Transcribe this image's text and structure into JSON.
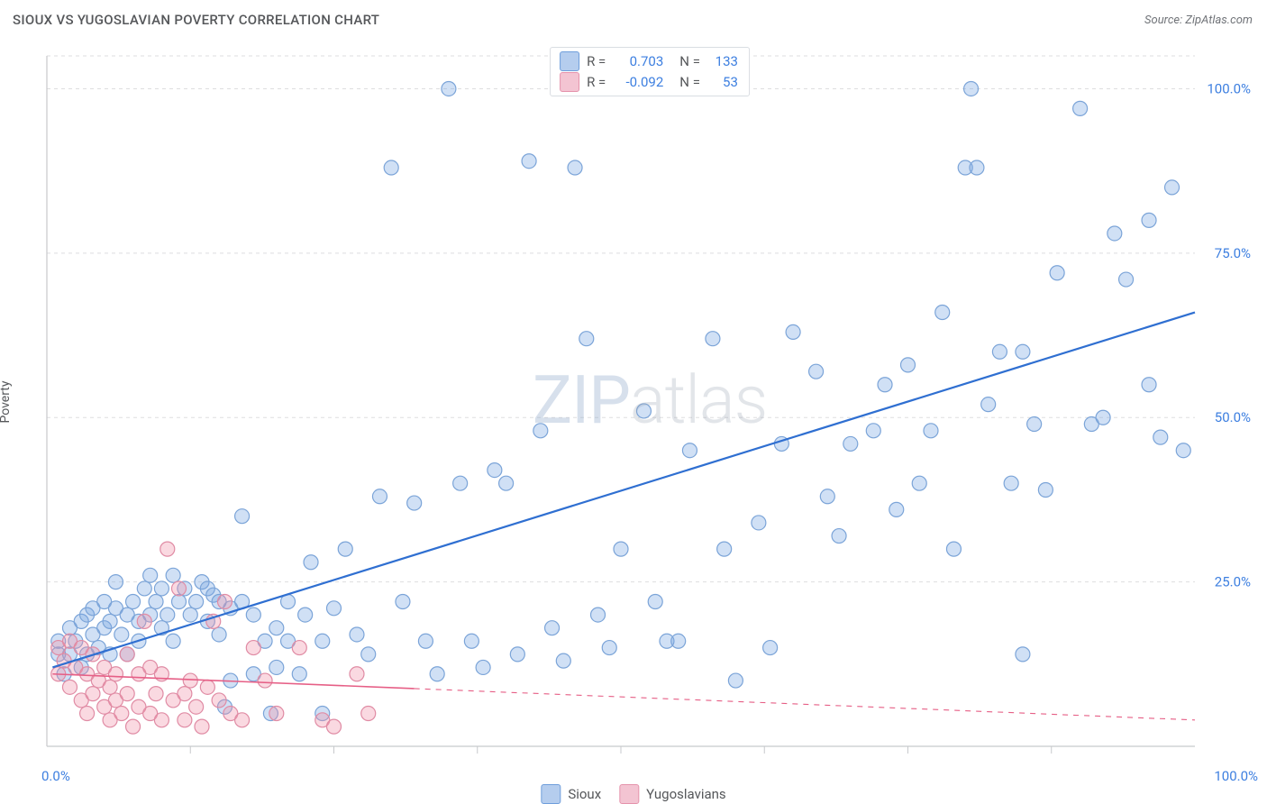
{
  "header": {
    "title": "SIOUX VS YUGOSLAVIAN POVERTY CORRELATION CHART",
    "source": "Source: ZipAtlas.com"
  },
  "y_label": "Poverty",
  "watermark": {
    "part1": "ZIP",
    "part2": "atlas"
  },
  "chart": {
    "type": "scatter",
    "xlim": [
      0,
      100
    ],
    "ylim": [
      0,
      105
    ],
    "x_ticks": [
      0,
      100
    ],
    "x_tick_labels": [
      "0.0%",
      "100.0%"
    ],
    "y_ticks": [
      25,
      50,
      75,
      100
    ],
    "y_tick_labels": [
      "25.0%",
      "50.0%",
      "75.0%",
      "100.0%"
    ],
    "x_minor_ticks": [
      12.5,
      25,
      37.5,
      50,
      62.5,
      75,
      87.5
    ],
    "background_color": "#ffffff",
    "grid_color": "#dededf",
    "axis_color": "#c7c9cc",
    "tick_label_color": "#3d7fe0",
    "marker_radius": 8,
    "marker_stroke_width": 1.2,
    "series": [
      {
        "name": "Sioux",
        "fill": "rgba(120,165,225,0.35)",
        "stroke": "#7ba4d8",
        "swatch_fill": "#b5cdee",
        "swatch_border": "#6f9edb",
        "points": [
          [
            1,
            16
          ],
          [
            1,
            14
          ],
          [
            1.5,
            11
          ],
          [
            2,
            18
          ],
          [
            2,
            14
          ],
          [
            2.5,
            16
          ],
          [
            3,
            19
          ],
          [
            3,
            12
          ],
          [
            3.5,
            20
          ],
          [
            3.5,
            14
          ],
          [
            4,
            21
          ],
          [
            4,
            17
          ],
          [
            4.5,
            15
          ],
          [
            5,
            22
          ],
          [
            5,
            18
          ],
          [
            5.5,
            19
          ],
          [
            5.5,
            14
          ],
          [
            6,
            21
          ],
          [
            6,
            25
          ],
          [
            6.5,
            17
          ],
          [
            7,
            20
          ],
          [
            7,
            14
          ],
          [
            7.5,
            22
          ],
          [
            8,
            19
          ],
          [
            8,
            16
          ],
          [
            8.5,
            24
          ],
          [
            9,
            20
          ],
          [
            9,
            26
          ],
          [
            9.5,
            22
          ],
          [
            10,
            18
          ],
          [
            10,
            24
          ],
          [
            10.5,
            20
          ],
          [
            11,
            26
          ],
          [
            11,
            16
          ],
          [
            11.5,
            22
          ],
          [
            12,
            24
          ],
          [
            12.5,
            20
          ],
          [
            13,
            22
          ],
          [
            13.5,
            25
          ],
          [
            14,
            19
          ],
          [
            14,
            24
          ],
          [
            14.5,
            23
          ],
          [
            15,
            22
          ],
          [
            15,
            17
          ],
          [
            15.5,
            6
          ],
          [
            16,
            21
          ],
          [
            16,
            10
          ],
          [
            17,
            22
          ],
          [
            17,
            35
          ],
          [
            18,
            20
          ],
          [
            18,
            11
          ],
          [
            19,
            16
          ],
          [
            19.5,
            5
          ],
          [
            20,
            18
          ],
          [
            20,
            12
          ],
          [
            21,
            22
          ],
          [
            21,
            16
          ],
          [
            22,
            11
          ],
          [
            22.5,
            20
          ],
          [
            23,
            28
          ],
          [
            24,
            16
          ],
          [
            24,
            5
          ],
          [
            25,
            21
          ],
          [
            26,
            30
          ],
          [
            27,
            17
          ],
          [
            28,
            14
          ],
          [
            29,
            38
          ],
          [
            30,
            88
          ],
          [
            31,
            22
          ],
          [
            32,
            37
          ],
          [
            33,
            16
          ],
          [
            34,
            11
          ],
          [
            35,
            100
          ],
          [
            36,
            40
          ],
          [
            37,
            16
          ],
          [
            38,
            12
          ],
          [
            39,
            42
          ],
          [
            40,
            40
          ],
          [
            41,
            14
          ],
          [
            42,
            89
          ],
          [
            43,
            48
          ],
          [
            44,
            18
          ],
          [
            45,
            13
          ],
          [
            46,
            88
          ],
          [
            47,
            62
          ],
          [
            48,
            20
          ],
          [
            49,
            15
          ],
          [
            50,
            30
          ],
          [
            52,
            51
          ],
          [
            53,
            22
          ],
          [
            54,
            16
          ],
          [
            55,
            16
          ],
          [
            56,
            45
          ],
          [
            58,
            62
          ],
          [
            59,
            30
          ],
          [
            60,
            10
          ],
          [
            62,
            34
          ],
          [
            63,
            15
          ],
          [
            64,
            46
          ],
          [
            65,
            63
          ],
          [
            67,
            57
          ],
          [
            68,
            38
          ],
          [
            69,
            32
          ],
          [
            70,
            46
          ],
          [
            72,
            48
          ],
          [
            73,
            55
          ],
          [
            74,
            36
          ],
          [
            75,
            58
          ],
          [
            76,
            40
          ],
          [
            77,
            48
          ],
          [
            78,
            66
          ],
          [
            79,
            30
          ],
          [
            80,
            88
          ],
          [
            81,
            88
          ],
          [
            80.5,
            100
          ],
          [
            82,
            52
          ],
          [
            83,
            60
          ],
          [
            84,
            40
          ],
          [
            85,
            60
          ],
          [
            85,
            14
          ],
          [
            86,
            49
          ],
          [
            87,
            39
          ],
          [
            88,
            72
          ],
          [
            90,
            97
          ],
          [
            91,
            49
          ],
          [
            92,
            50
          ],
          [
            93,
            78
          ],
          [
            94,
            71
          ],
          [
            96,
            55
          ],
          [
            97,
            47
          ],
          [
            98,
            85
          ],
          [
            99,
            45
          ],
          [
            96,
            80
          ]
        ],
        "trend": {
          "x1": 0.5,
          "y1": 12,
          "x2": 100,
          "y2": 66,
          "solid_until_x": 100,
          "color": "#2f6fd1",
          "width": 2.2
        }
      },
      {
        "name": "Yugoslavians",
        "fill": "rgba(240,145,170,0.35)",
        "stroke": "#e08ba4",
        "swatch_fill": "#f3c4d2",
        "swatch_border": "#e593ac",
        "points": [
          [
            1,
            15
          ],
          [
            1,
            11
          ],
          [
            1.5,
            13
          ],
          [
            2,
            16
          ],
          [
            2,
            9
          ],
          [
            2.5,
            12
          ],
          [
            3,
            15
          ],
          [
            3,
            7
          ],
          [
            3.5,
            11
          ],
          [
            3.5,
            5
          ],
          [
            4,
            14
          ],
          [
            4,
            8
          ],
          [
            4.5,
            10
          ],
          [
            5,
            12
          ],
          [
            5,
            6
          ],
          [
            5.5,
            9
          ],
          [
            5.5,
            4
          ],
          [
            6,
            11
          ],
          [
            6,
            7
          ],
          [
            6.5,
            5
          ],
          [
            7,
            14
          ],
          [
            7,
            8
          ],
          [
            7.5,
            3
          ],
          [
            8,
            11
          ],
          [
            8,
            6
          ],
          [
            8.5,
            19
          ],
          [
            9,
            12
          ],
          [
            9,
            5
          ],
          [
            9.5,
            8
          ],
          [
            10,
            11
          ],
          [
            10,
            4
          ],
          [
            10.5,
            30
          ],
          [
            11,
            7
          ],
          [
            11.5,
            24
          ],
          [
            12,
            8
          ],
          [
            12,
            4
          ],
          [
            12.5,
            10
          ],
          [
            13,
            6
          ],
          [
            13.5,
            3
          ],
          [
            14,
            9
          ],
          [
            14.5,
            19
          ],
          [
            15,
            7
          ],
          [
            15.5,
            22
          ],
          [
            16,
            5
          ],
          [
            17,
            4
          ],
          [
            18,
            15
          ],
          [
            19,
            10
          ],
          [
            20,
            5
          ],
          [
            22,
            15
          ],
          [
            24,
            4
          ],
          [
            25,
            3
          ],
          [
            27,
            11
          ],
          [
            28,
            5
          ]
        ],
        "trend": {
          "x1": 0.5,
          "y1": 11,
          "x2": 100,
          "y2": 4,
          "solid_until_x": 32,
          "color": "#e65f86",
          "width": 1.6
        }
      }
    ]
  },
  "stats_legend": {
    "rows": [
      {
        "swatch_fill": "#b5cdee",
        "swatch_border": "#6f9edb",
        "r_label": "R =",
        "r": "0.703",
        "n_label": "N =",
        "n": "133"
      },
      {
        "swatch_fill": "#f3c4d2",
        "swatch_border": "#e593ac",
        "r_label": "R =",
        "r": "-0.092",
        "n_label": "N =",
        "n": "53"
      }
    ]
  },
  "bottom_legend": {
    "items": [
      {
        "swatch_fill": "#b5cdee",
        "swatch_border": "#6f9edb",
        "label": "Sioux"
      },
      {
        "swatch_fill": "#f3c4d2",
        "swatch_border": "#e593ac",
        "label": "Yugoslavians"
      }
    ]
  }
}
